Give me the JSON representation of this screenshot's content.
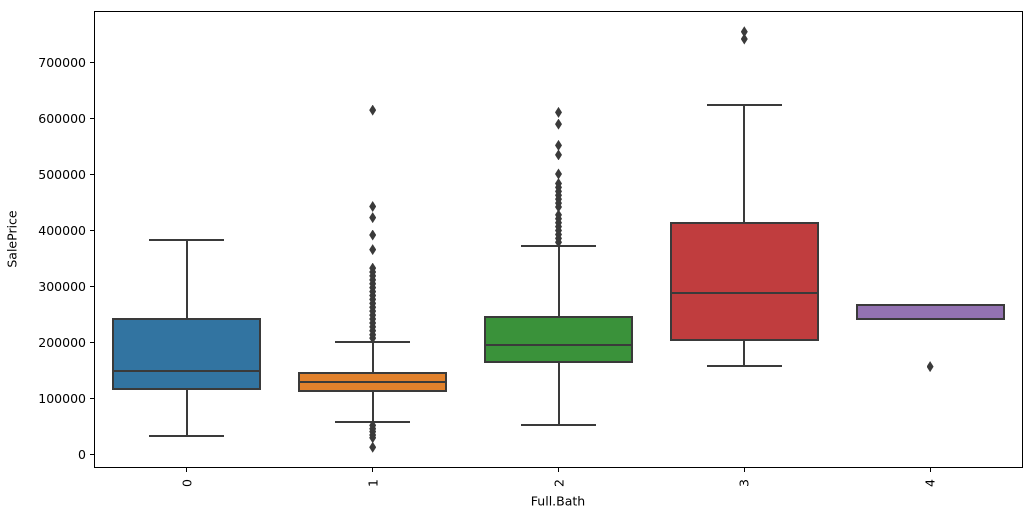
{
  "chart_data": {
    "type": "box",
    "title": "",
    "xlabel": "Full.Bath",
    "ylabel": "SalePrice",
    "categories": [
      "0",
      "1",
      "2",
      "3",
      "4"
    ],
    "ylim": [
      -24000,
      792000
    ],
    "yticks": [
      0,
      100000,
      200000,
      300000,
      400000,
      500000,
      600000,
      700000
    ],
    "ytick_labels": [
      "0",
      "100000",
      "200000",
      "300000",
      "400000",
      "500000",
      "600000",
      "700000"
    ],
    "grid": false,
    "legend_position": "none",
    "line_color": "#3a3a3a",
    "flier_color": "#3a3a3a",
    "boxes": [
      {
        "category": "0",
        "color": "#3274a1",
        "whisker_low": 34000,
        "q1": 116000,
        "median": 149000,
        "q3": 243000,
        "whisker_high": 384000,
        "outliers": []
      },
      {
        "category": "1",
        "color": "#e1812c",
        "whisker_low": 58000,
        "q1": 112000,
        "median": 129000,
        "q3": 147000,
        "whisker_high": 201000,
        "outliers": [
          615000,
          443000,
          423000,
          392000,
          366000,
          333000,
          326000,
          319000,
          312000,
          305000,
          298000,
          291000,
          284000,
          277000,
          270000,
          263000,
          256000,
          249000,
          242000,
          235000,
          228000,
          221000,
          214000,
          208000,
          52000,
          46000,
          41000,
          35000,
          30000,
          13000
        ]
      },
      {
        "category": "2",
        "color": "#3a923a",
        "whisker_low": 52000,
        "q1": 163000,
        "median": 196000,
        "q3": 247000,
        "whisker_high": 373000,
        "outliers": [
          611000,
          590000,
          552000,
          535000,
          501000,
          484000,
          477000,
          470000,
          463000,
          456000,
          449000,
          442000,
          428000,
          421000,
          414000,
          407000,
          400000,
          393000,
          386000,
          379000
        ]
      },
      {
        "category": "3",
        "color": "#c03d3e",
        "whisker_low": 158000,
        "q1": 202000,
        "median": 288000,
        "q3": 416000,
        "whisker_high": 625000,
        "outliers": [
          755000,
          742000
        ]
      },
      {
        "category": "4",
        "color": "#9372b2",
        "whisker_low": null,
        "q1": 240000,
        "median": null,
        "q3": 268000,
        "whisker_high": null,
        "outliers": [
          157000
        ]
      }
    ]
  }
}
